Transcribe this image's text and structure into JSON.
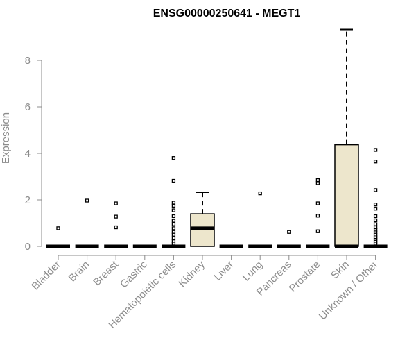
{
  "chart_data": {
    "type": "box",
    "title": "ENSG00000250641 - MEGT1",
    "xlabel": "",
    "ylabel": "Expression",
    "ylim": [
      0,
      9.3
    ],
    "yticks": [
      0,
      2,
      4,
      6,
      8
    ],
    "box_fill": "#ede6cc",
    "categories": [
      "Bladder",
      "Brain",
      "Breast",
      "Gastric",
      "Hematopoietic cells",
      "Kidney",
      "Liver",
      "Lung",
      "Pancreas",
      "Prostate",
      "Skin",
      "Unknown / Other"
    ],
    "boxes": [
      {
        "min": 0,
        "q1": 0,
        "median": 0,
        "q3": 0,
        "max": 0,
        "outliers": [
          0.78
        ]
      },
      {
        "min": 0,
        "q1": 0,
        "median": 0,
        "q3": 0,
        "max": 0,
        "outliers": [
          1.97
        ]
      },
      {
        "min": 0,
        "q1": 0,
        "median": 0,
        "q3": 0,
        "max": 0,
        "outliers": [
          1.85,
          1.28,
          0.82
        ]
      },
      {
        "min": 0,
        "q1": 0,
        "median": 0,
        "q3": 0,
        "max": 0,
        "outliers": []
      },
      {
        "min": 0,
        "q1": 0,
        "median": 0,
        "q3": 0,
        "max": 0,
        "outliers": [
          3.8,
          2.82,
          1.88,
          1.75,
          1.55,
          1.3,
          1.1,
          0.95,
          0.78,
          0.62,
          0.5,
          0.35,
          0.22,
          0.12
        ]
      },
      {
        "min": 0,
        "q1": 0,
        "median": 0.78,
        "q3": 1.4,
        "max": 2.33,
        "outliers": []
      },
      {
        "min": 0,
        "q1": 0,
        "median": 0,
        "q3": 0,
        "max": 0,
        "outliers": []
      },
      {
        "min": 0,
        "q1": 0,
        "median": 0,
        "q3": 0,
        "max": 0,
        "outliers": [
          2.28
        ]
      },
      {
        "min": 0,
        "q1": 0,
        "median": 0,
        "q3": 0,
        "max": 0,
        "outliers": [
          0.62
        ]
      },
      {
        "min": 0,
        "q1": 0,
        "median": 0,
        "q3": 0,
        "max": 0,
        "outliers": [
          2.85,
          2.72,
          1.85,
          1.32,
          0.65
        ]
      },
      {
        "min": 0,
        "q1": 0,
        "median": 0,
        "q3": 4.37,
        "max": 9.33,
        "outliers": []
      },
      {
        "min": 0,
        "q1": 0,
        "median": 0,
        "q3": 0,
        "max": 0,
        "outliers": [
          4.15,
          3.65,
          2.42,
          1.8,
          1.62,
          1.3,
          1.12,
          0.95,
          0.82,
          0.7,
          0.6,
          0.5,
          0.42,
          0.35,
          0.28,
          0.2,
          0.12
        ]
      }
    ]
  }
}
